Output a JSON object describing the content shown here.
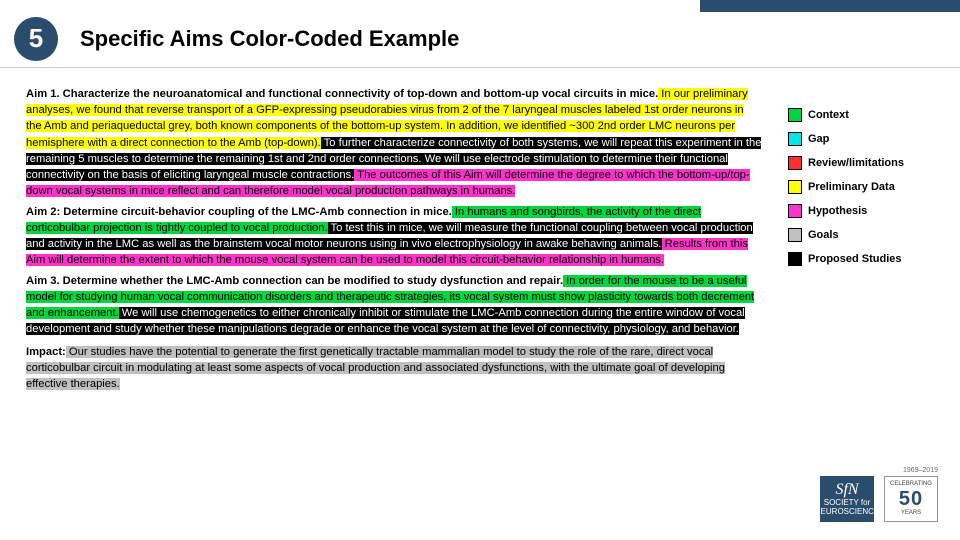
{
  "header": {
    "badge_number": "5",
    "title": "Specific Aims Color-Coded Example"
  },
  "colors": {
    "context": "#00d63f",
    "gap": "#00e6e6",
    "review": "#ff3030",
    "prelim": "#ffff00",
    "hypothesis": "#ff33cc",
    "goals": "#c0c0c0",
    "proposed": "#000000",
    "brand": "#2a4d6e"
  },
  "legend": [
    {
      "label": "Context",
      "swatch": "#00d63f"
    },
    {
      "label": "Gap",
      "swatch": "#00e6e6"
    },
    {
      "label": "Review/limitations",
      "swatch": "#ff3030"
    },
    {
      "label": "Preliminary Data",
      "swatch": "#ffff00"
    },
    {
      "label": "Hypothesis",
      "swatch": "#ff33cc"
    },
    {
      "label": "Goals",
      "swatch": "#c0c0c0"
    },
    {
      "label": "Proposed Studies",
      "swatch": "#000000"
    }
  ],
  "aims": {
    "aim1": {
      "heading": "Aim 1. Characterize the neuroanatomical and functional connectivity of top-down and bottom-up vocal circuits in mice.",
      "prelim": " In our preliminary analyses, we found that reverse transport of a GFP-expressing pseudorabies virus from 2 of the 7 laryngeal muscles labeled 1st order neurons in the Amb and periaqueductal grey, both known components of the bottom-up system. In addition, we identified ~300 2nd order LMC neurons per hemisphere with a direct connection to the Amb (top-down).",
      "proposed": " To further characterize connectivity of both systems, we will repeat this experiment in the remaining 5 muscles to determine the remaining 1st and 2nd order connections. We will use electrode stimulation to determine their functional connectivity on the basis of eliciting laryngeal muscle contractions.",
      "hypothesis": " The outcomes of this Aim will determine the degree to which the bottom-up/top-down vocal systems in mice reflect and can therefore model vocal production pathways in humans."
    },
    "aim2": {
      "heading": "Aim 2: Determine circuit-behavior coupling of the LMC-Amb connection in mice.",
      "context": " In humans and songbirds, the activity of the direct corticobulbar projection is tightly coupled to vocal production.",
      "proposed": " To test this in mice, we will measure the functional coupling between vocal production and activity in the LMC as well as the brainstem vocal motor neurons using in vivo electrophysiology in awake behaving animals.",
      "hypothesis": " Results from this Aim will determine the extent to which the mouse vocal system can be used to model this circuit-behavior relationship in humans."
    },
    "aim3": {
      "heading": "Aim 3. Determine whether the LMC-Amb connection can be modified to study dysfunction and repair.",
      "context": " In order for the mouse to be a useful model for studying human vocal communication disorders and therapeutic strategies, its vocal system must show plasticity towards both decrement and enhancement.",
      "proposed": " We will use chemogenetics to either chronically inhibit or stimulate the LMC-Amb connection during the entire window of vocal development and study whether these manipulations degrade or enhance the vocal system at the level of connectivity, physiology, and behavior."
    },
    "impact": {
      "heading": "Impact:",
      "goals": " Our studies have the potential to generate the first genetically tractable mammalian model to study the role of the rare, direct vocal corticobulbar circuit in modulating at least some aspects of vocal production and associated dysfunctions, with the ultimate goal of developing effective therapies."
    }
  },
  "footer": {
    "years": "1969–2019",
    "sfn_abbrev": "SfN",
    "sfn_line1": "SOCIETY for",
    "sfn_line2": "NEUROSCIENCE",
    "fifty_top": "CELEBRATING",
    "fifty_num": "50",
    "fifty_bot": "YEARS"
  }
}
